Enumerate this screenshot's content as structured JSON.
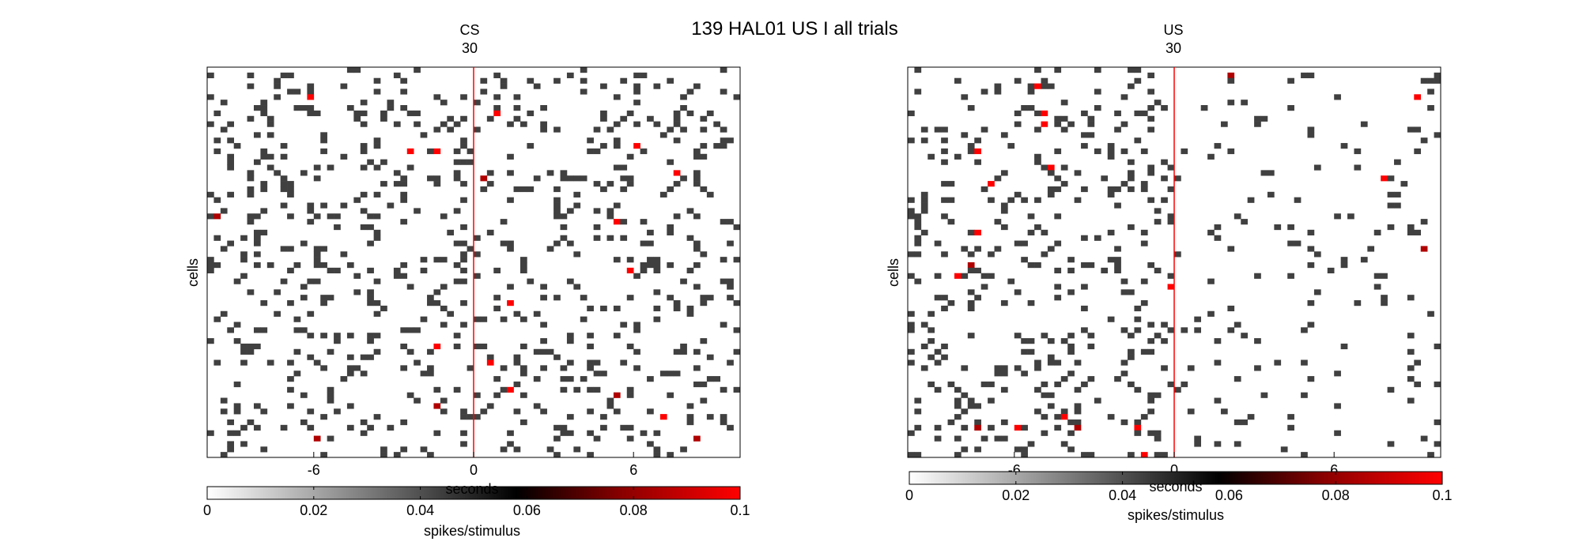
{
  "figure": {
    "title": "139 HAL01 US I all trials"
  },
  "colorscale": {
    "stops": [
      "#ffffff",
      "#3a3a3a",
      "#000000",
      "#8b0000",
      "#ff0000"
    ],
    "stim_line_color": "#ff0000",
    "mark_color_main": "#404040"
  },
  "chart_data": [
    {
      "type": "heatmap",
      "panel": "cs",
      "title": "CS",
      "subtitle": "30",
      "xlabel": "seconds",
      "ylabel": "cells",
      "xlim": [
        -10,
        10
      ],
      "xticks": [
        -6,
        0,
        6
      ],
      "xtick_labels": [
        "-6",
        "0",
        "6"
      ],
      "stimulus_time": 0,
      "n_cells": 72,
      "n_bins": 80,
      "colorbar": {
        "label": "spikes/stimulus",
        "clim": [
          0,
          0.1
        ],
        "ticks": [
          0,
          0.02,
          0.04,
          0.06,
          0.08,
          0.1
        ],
        "tick_labels": [
          "0",
          "0.02",
          "0.04",
          "0.06",
          "0.08",
          "0.1"
        ]
      }
    },
    {
      "type": "heatmap",
      "panel": "us",
      "title": "US",
      "subtitle": "30",
      "xlabel": "seconds",
      "ylabel": "cells",
      "xlim": [
        -10,
        10
      ],
      "xticks": [
        -6,
        0,
        6
      ],
      "xtick_labels": [
        "-6",
        "0",
        "6"
      ],
      "stimulus_time": 0,
      "n_cells": 72,
      "n_bins": 80,
      "colorbar": {
        "label": "spikes/stimulus",
        "clim": [
          0,
          0.1
        ],
        "ticks": [
          0,
          0.02,
          0.04,
          0.06,
          0.08,
          0.1
        ],
        "tick_labels": [
          "0",
          "0.02",
          "0.04",
          "0.06",
          "0.08",
          "0.1"
        ]
      }
    }
  ]
}
